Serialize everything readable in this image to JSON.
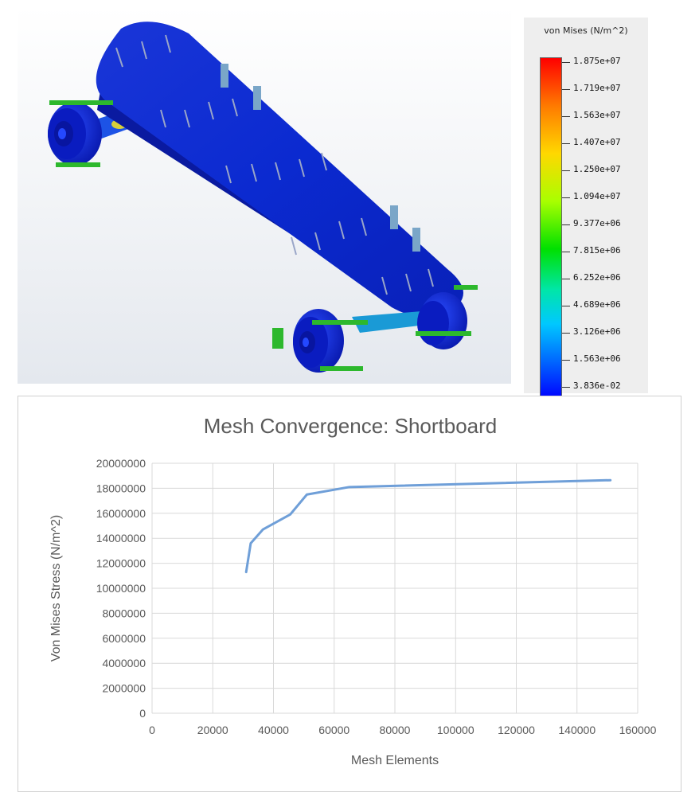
{
  "legend": {
    "title": "von Mises (N/m^2)",
    "labels": [
      "1.875e+07",
      "1.719e+07",
      "1.563e+07",
      "1.407e+07",
      "1.250e+07",
      "1.094e+07",
      "9.377e+06",
      "7.815e+06",
      "6.252e+06",
      "4.689e+06",
      "3.126e+06",
      "1.563e+06",
      "3.836e-02"
    ],
    "colors": {
      "max": "#ff0000",
      "min": "#0000ff"
    }
  },
  "chart_data": {
    "type": "line",
    "title": "Mesh Convergence: Shortboard",
    "xlabel": "Mesh Elements",
    "ylabel": "Von Mises Stress (N/m^2)",
    "xlim": [
      0,
      160000
    ],
    "ylim": [
      0,
      20000000
    ],
    "xticks": [
      "0",
      "20000",
      "40000",
      "60000",
      "80000",
      "100000",
      "120000",
      "140000",
      "160000"
    ],
    "yticks": [
      "0",
      "2000000",
      "4000000",
      "6000000",
      "8000000",
      "10000000",
      "12000000",
      "14000000",
      "16000000",
      "18000000",
      "20000000"
    ],
    "grid": true,
    "series": [
      {
        "color": "#6f9fd8",
        "x": [
          31000,
          32500,
          36500,
          45500,
          51000,
          65000,
          151000
        ],
        "y": [
          11300000,
          13600000,
          14700000,
          15900000,
          17500000,
          18100000,
          18650000
        ]
      }
    ]
  }
}
